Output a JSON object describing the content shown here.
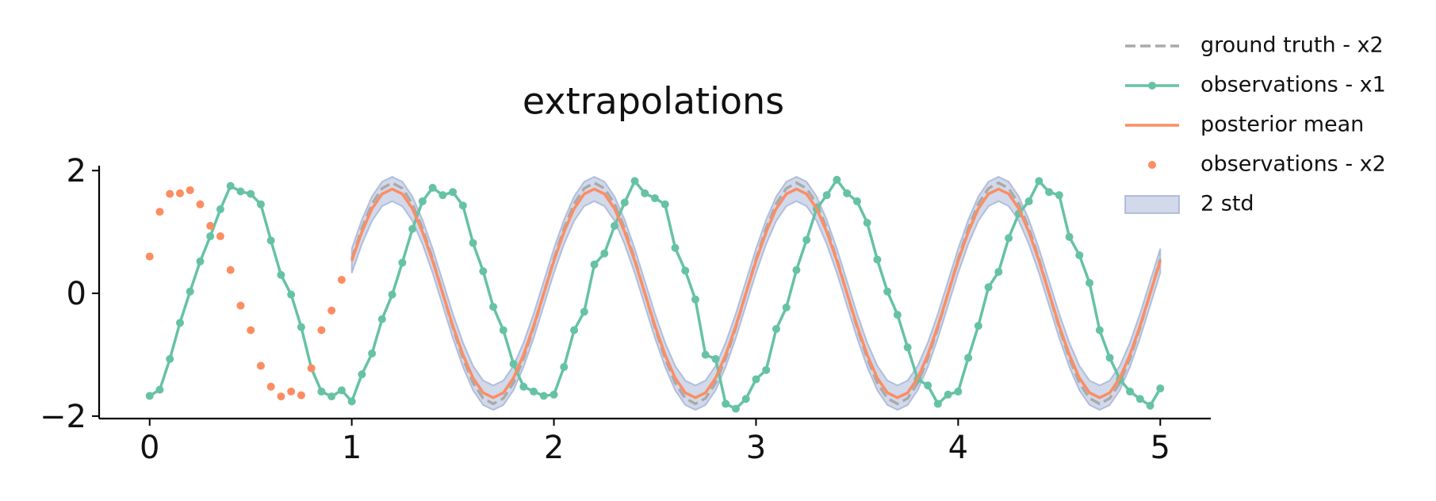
{
  "chart_data": {
    "type": "line",
    "title": "extrapolations",
    "legend": "upper right",
    "grid": false,
    "xlim": [
      -0.25,
      5.25
    ],
    "ylim": [
      -2.04,
      2.08
    ],
    "xticks": [
      0,
      1,
      2,
      3,
      4,
      5
    ],
    "yticks": [
      {
        "value": -2,
        "label": "−2"
      },
      0,
      2
    ],
    "series": [
      {
        "name": "ground truth - x2",
        "style": "dashed",
        "color": "#aaaaaa",
        "x": [
          1,
          1.05,
          1.1,
          1.15,
          1.2,
          1.25,
          1.3,
          1.35,
          1.4,
          1.45,
          1.5,
          1.55,
          1.6,
          1.65,
          1.7,
          1.75,
          1.8,
          1.85,
          1.9,
          1.95,
          2,
          2.05,
          2.1,
          2.15,
          2.2,
          2.25,
          2.3,
          2.35,
          2.4,
          2.45,
          2.5,
          2.55,
          2.6,
          2.65,
          2.7,
          2.75,
          2.8,
          2.85,
          2.9,
          2.95,
          3,
          3.05,
          3.1,
          3.15,
          3.2,
          3.25,
          3.3,
          3.35,
          3.4,
          3.45,
          3.5,
          3.55,
          3.6,
          3.65,
          3.7,
          3.75,
          3.8,
          3.85,
          3.9,
          3.95,
          4,
          4.05,
          4.1,
          4.15,
          4.2,
          4.25,
          4.3,
          4.35,
          4.4,
          4.45,
          4.5,
          4.55,
          4.6,
          4.65,
          4.7,
          4.75,
          4.8,
          4.85,
          4.9,
          4.95,
          5
        ],
        "values": [
          0.56,
          1.06,
          1.46,
          1.71,
          1.8,
          1.71,
          1.46,
          1.06,
          0.56,
          0,
          -0.56,
          -1.06,
          -1.46,
          -1.71,
          -1.8,
          -1.71,
          -1.46,
          -1.06,
          -0.56,
          0,
          0.56,
          1.06,
          1.46,
          1.71,
          1.8,
          1.71,
          1.46,
          1.06,
          0.56,
          0,
          -0.56,
          -1.06,
          -1.46,
          -1.71,
          -1.8,
          -1.71,
          -1.46,
          -1.06,
          -0.56,
          0,
          0.56,
          1.06,
          1.46,
          1.71,
          1.8,
          1.71,
          1.46,
          1.06,
          0.56,
          0,
          -0.56,
          -1.06,
          -1.46,
          -1.71,
          -1.8,
          -1.71,
          -1.46,
          -1.06,
          -0.56,
          0,
          0.56,
          1.06,
          1.46,
          1.71,
          1.8,
          1.71,
          1.46,
          1.06,
          0.56,
          0,
          -0.56,
          -1.06,
          -1.46,
          -1.71,
          -1.8,
          -1.71,
          -1.46,
          -1.06,
          -0.56,
          0,
          0.56
        ]
      },
      {
        "name": "observations - x1",
        "style": "line-markers",
        "color": "#66c2a5",
        "x": [
          0,
          0.05,
          0.1,
          0.15,
          0.2,
          0.25,
          0.3,
          0.35,
          0.4,
          0.45,
          0.5,
          0.55,
          0.6,
          0.65,
          0.7,
          0.75,
          0.8,
          0.85,
          0.9,
          0.95,
          1,
          1.05,
          1.1,
          1.15,
          1.2,
          1.25,
          1.3,
          1.35,
          1.4,
          1.45,
          1.5,
          1.55,
          1.6,
          1.65,
          1.7,
          1.75,
          1.8,
          1.85,
          1.9,
          1.95,
          2,
          2.05,
          2.1,
          2.15,
          2.2,
          2.25,
          2.3,
          2.35,
          2.4,
          2.45,
          2.5,
          2.55,
          2.6,
          2.65,
          2.7,
          2.75,
          2.8,
          2.85,
          2.9,
          2.95,
          3,
          3.05,
          3.1,
          3.15,
          3.2,
          3.25,
          3.3,
          3.35,
          3.4,
          3.45,
          3.5,
          3.55,
          3.6,
          3.65,
          3.7,
          3.75,
          3.8,
          3.85,
          3.9,
          3.95,
          4,
          4.05,
          4.1,
          4.15,
          4.2,
          4.25,
          4.3,
          4.35,
          4.4,
          4.45,
          4.5,
          4.55,
          4.6,
          4.65,
          4.7,
          4.75,
          4.8,
          4.85,
          4.9,
          4.95,
          5
        ],
        "values": [
          -1.67,
          -1.57,
          -1.07,
          -0.48,
          0.03,
          0.52,
          0.93,
          1.37,
          1.75,
          1.66,
          1.62,
          1.45,
          0.86,
          0.3,
          -0.02,
          -0.55,
          -1.22,
          -1.6,
          -1.68,
          -1.58,
          -1.76,
          -1.32,
          -0.98,
          -0.42,
          -0.02,
          0.5,
          1.05,
          1.5,
          1.72,
          1.6,
          1.65,
          1.43,
          0.82,
          0.36,
          -0.22,
          -0.6,
          -1.15,
          -1.52,
          -1.6,
          -1.67,
          -1.65,
          -1.2,
          -0.6,
          -0.3,
          0.47,
          0.65,
          1.1,
          1.48,
          1.83,
          1.63,
          1.55,
          1.45,
          0.74,
          0.37,
          -0.1,
          -1.0,
          -1.07,
          -1.8,
          -1.88,
          -1.72,
          -1.4,
          -1.25,
          -0.58,
          -0.23,
          0.38,
          0.87,
          1.38,
          1.6,
          1.85,
          1.63,
          1.5,
          1.15,
          0.55,
          0.03,
          -0.35,
          -0.88,
          -1.4,
          -1.5,
          -1.8,
          -1.65,
          -1.6,
          -1.05,
          -0.53,
          0.1,
          0.35,
          0.9,
          1.3,
          1.5,
          1.83,
          1.65,
          1.6,
          0.92,
          0.62,
          0.17,
          -0.6,
          -1.05,
          -1.4,
          -1.6,
          -1.72,
          -1.83,
          -1.55
        ]
      },
      {
        "name": "posterior mean",
        "style": "line",
        "color": "#fc8d62",
        "x": [
          1,
          1.05,
          1.1,
          1.15,
          1.2,
          1.25,
          1.3,
          1.35,
          1.4,
          1.45,
          1.5,
          1.55,
          1.6,
          1.65,
          1.7,
          1.75,
          1.8,
          1.85,
          1.9,
          1.95,
          2,
          2.05,
          2.1,
          2.15,
          2.2,
          2.25,
          2.3,
          2.35,
          2.4,
          2.45,
          2.5,
          2.55,
          2.6,
          2.65,
          2.7,
          2.75,
          2.8,
          2.85,
          2.9,
          2.95,
          3,
          3.05,
          3.1,
          3.15,
          3.2,
          3.25,
          3.3,
          3.35,
          3.4,
          3.45,
          3.5,
          3.55,
          3.6,
          3.65,
          3.7,
          3.75,
          3.8,
          3.85,
          3.9,
          3.95,
          4,
          4.05,
          4.1,
          4.15,
          4.2,
          4.25,
          4.3,
          4.35,
          4.4,
          4.45,
          4.5,
          4.55,
          4.6,
          4.65,
          4.7,
          4.75,
          4.8,
          4.85,
          4.9,
          4.95,
          5
        ],
        "values": [
          0.53,
          1.0,
          1.38,
          1.62,
          1.7,
          1.62,
          1.38,
          1.0,
          0.53,
          0,
          -0.53,
          -1.0,
          -1.38,
          -1.62,
          -1.7,
          -1.62,
          -1.38,
          -1.0,
          -0.53,
          0,
          0.53,
          1.0,
          1.38,
          1.62,
          1.7,
          1.62,
          1.38,
          1.0,
          0.53,
          0,
          -0.53,
          -1.0,
          -1.38,
          -1.62,
          -1.7,
          -1.62,
          -1.38,
          -1.0,
          -0.53,
          0,
          0.53,
          1.0,
          1.38,
          1.62,
          1.7,
          1.62,
          1.38,
          1.0,
          0.53,
          0,
          -0.53,
          -1.0,
          -1.38,
          -1.62,
          -1.7,
          -1.62,
          -1.38,
          -1.0,
          -0.53,
          0,
          0.53,
          1.0,
          1.38,
          1.62,
          1.7,
          1.62,
          1.38,
          1.0,
          0.53,
          0,
          -0.53,
          -1.0,
          -1.38,
          -1.62,
          -1.7,
          -1.62,
          -1.38,
          -1.0,
          -0.53,
          0,
          0.53
        ]
      },
      {
        "name": "observations - x2",
        "style": "markers",
        "color": "#fc8d62",
        "x": [
          0,
          0.05,
          0.1,
          0.15,
          0.2,
          0.25,
          0.3,
          0.35,
          0.4,
          0.45,
          0.5,
          0.55,
          0.6,
          0.65,
          0.7,
          0.75,
          0.8,
          0.85,
          0.9,
          0.95
        ],
        "values": [
          0.6,
          1.33,
          1.62,
          1.63,
          1.68,
          1.45,
          1.1,
          0.93,
          0.38,
          -0.2,
          -0.6,
          -1.18,
          -1.52,
          -1.68,
          -1.6,
          -1.66,
          -1.22,
          -0.6,
          -0.28,
          0.22
        ]
      },
      {
        "name": "2 std",
        "style": "band",
        "color": "#8da0cb",
        "x": [
          1,
          1.05,
          1.1,
          1.15,
          1.2,
          1.25,
          1.3,
          1.35,
          1.4,
          1.45,
          1.5,
          1.55,
          1.6,
          1.65,
          1.7,
          1.75,
          1.8,
          1.85,
          1.9,
          1.95,
          2,
          2.05,
          2.1,
          2.15,
          2.2,
          2.25,
          2.3,
          2.35,
          2.4,
          2.45,
          2.5,
          2.55,
          2.6,
          2.65,
          2.7,
          2.75,
          2.8,
          2.85,
          2.9,
          2.95,
          3,
          3.05,
          3.1,
          3.15,
          3.2,
          3.25,
          3.3,
          3.35,
          3.4,
          3.45,
          3.5,
          3.55,
          3.6,
          3.65,
          3.7,
          3.75,
          3.8,
          3.85,
          3.9,
          3.95,
          4,
          4.05,
          4.1,
          4.15,
          4.2,
          4.25,
          4.3,
          4.35,
          4.4,
          4.45,
          4.5,
          4.55,
          4.6,
          4.65,
          4.7,
          4.75,
          4.8,
          4.85,
          4.9,
          4.95,
          5
        ],
        "upper": [
          0.73,
          1.2,
          1.58,
          1.82,
          1.9,
          1.82,
          1.58,
          1.2,
          0.73,
          0.2,
          -0.33,
          -0.8,
          -1.18,
          -1.42,
          -1.5,
          -1.42,
          -1.18,
          -0.8,
          -0.33,
          0.2,
          0.73,
          1.2,
          1.58,
          1.82,
          1.9,
          1.82,
          1.58,
          1.2,
          0.73,
          0.2,
          -0.33,
          -0.8,
          -1.18,
          -1.42,
          -1.5,
          -1.42,
          -1.18,
          -0.8,
          -0.33,
          0.2,
          0.73,
          1.2,
          1.58,
          1.82,
          1.9,
          1.82,
          1.58,
          1.2,
          0.73,
          0.2,
          -0.33,
          -0.8,
          -1.18,
          -1.42,
          -1.5,
          -1.42,
          -1.18,
          -0.8,
          -0.33,
          0.2,
          0.73,
          1.2,
          1.58,
          1.82,
          1.9,
          1.82,
          1.58,
          1.2,
          0.73,
          0.2,
          -0.33,
          -0.8,
          -1.18,
          -1.42,
          -1.5,
          -1.42,
          -1.18,
          -0.8,
          -0.33,
          0.2,
          0.73
        ],
        "lower": [
          0.33,
          0.8,
          1.18,
          1.42,
          1.5,
          1.42,
          1.18,
          0.8,
          0.33,
          -0.2,
          -0.73,
          -1.2,
          -1.58,
          -1.82,
          -1.9,
          -1.82,
          -1.58,
          -1.2,
          -0.73,
          -0.2,
          0.33,
          0.8,
          1.18,
          1.42,
          1.5,
          1.42,
          1.18,
          0.8,
          0.33,
          -0.2,
          -0.73,
          -1.2,
          -1.58,
          -1.82,
          -1.9,
          -1.82,
          -1.58,
          -1.2,
          -0.73,
          -0.2,
          0.33,
          0.8,
          1.18,
          1.42,
          1.5,
          1.42,
          1.18,
          0.8,
          0.33,
          -0.2,
          -0.73,
          -1.2,
          -1.58,
          -1.82,
          -1.9,
          -1.82,
          -1.58,
          -1.2,
          -0.73,
          -0.2,
          0.33,
          0.8,
          1.18,
          1.42,
          1.5,
          1.42,
          1.18,
          0.8,
          0.33,
          -0.2,
          -0.73,
          -1.2,
          -1.58,
          -1.82,
          -1.9,
          -1.82,
          -1.58,
          -1.2,
          -0.73,
          -0.2,
          0.33
        ]
      }
    ]
  }
}
